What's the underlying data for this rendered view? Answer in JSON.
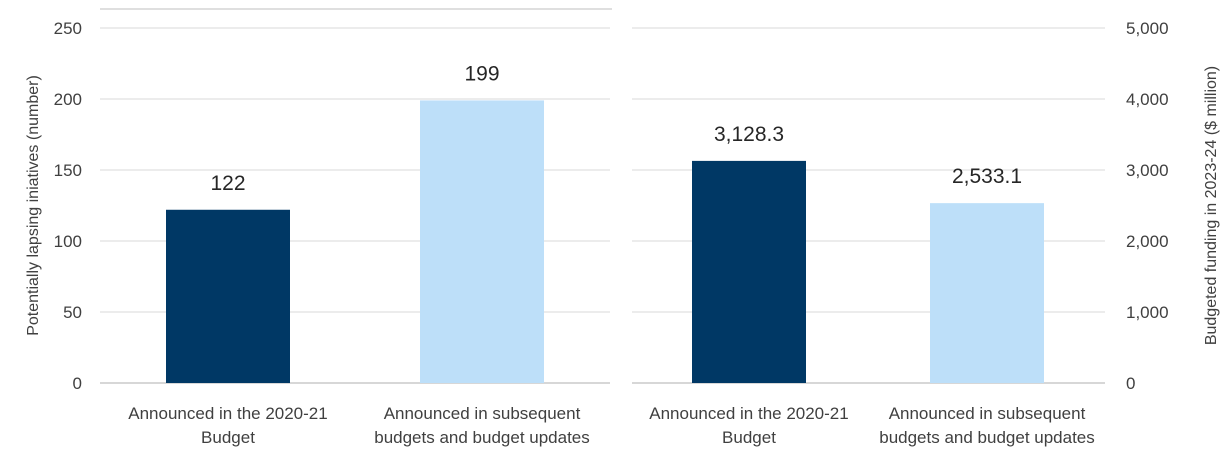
{
  "chart_data": [
    {
      "type": "bar",
      "categories": [
        [
          "Announced in the 2020-21",
          "Budget"
        ],
        [
          "Announced in subsequent",
          "budgets and budget updates"
        ]
      ],
      "values": [
        122,
        199
      ],
      "value_labels": [
        "122",
        "199"
      ],
      "bar_colors": [
        "#003865",
        "#bddff9"
      ],
      "ylabel": "Potentially lapsing iniatives (number)",
      "ylim": [
        0,
        250
      ],
      "yticks": [
        "0",
        "50",
        "100",
        "150",
        "200",
        "250"
      ],
      "y_axis_side": "left",
      "grid": true
    },
    {
      "type": "bar",
      "categories": [
        [
          "Announced in the 2020-21",
          "Budget"
        ],
        [
          "Announced in subsequent",
          "budgets and budget updates"
        ]
      ],
      "values": [
        3128.3,
        2533.1
      ],
      "value_labels": [
        "3,128.3",
        "2,533.1"
      ],
      "bar_colors": [
        "#003865",
        "#bddff9"
      ],
      "ylabel": "Budgeted funding in 2023-24 ($ million)",
      "ylim": [
        0,
        5000
      ],
      "yticks": [
        "0",
        "1,000",
        "2,000",
        "3,000",
        "4,000",
        "5,000"
      ],
      "y_axis_side": "right",
      "grid": true
    }
  ]
}
